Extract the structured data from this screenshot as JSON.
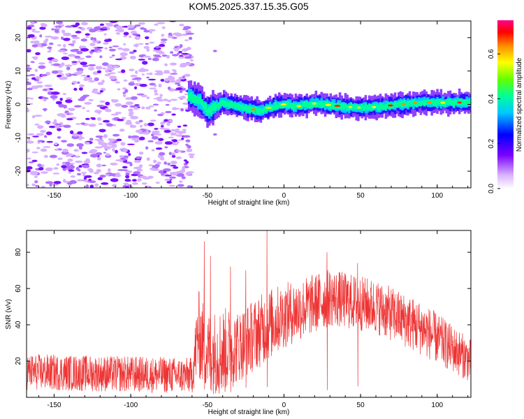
{
  "title": "KOM5.2025.337.15.35.G05",
  "chart_data": [
    {
      "type": "heatmap",
      "name": "spectrogram",
      "xlabel": "Height of straight line (km)",
      "ylabel": "Frequency (Hz)",
      "xlim": [
        -168,
        122
      ],
      "ylim": [
        -25,
        25
      ],
      "xticks": [
        -150,
        -100,
        -50,
        0,
        50,
        100
      ],
      "yticks": [
        -20,
        -10,
        0,
        10,
        20
      ],
      "noise_region_x": [
        -168,
        -60
      ],
      "signal_start_x": -62,
      "signal_track": [
        {
          "x": -62,
          "f": 2.5
        },
        {
          "x": -55,
          "f": 1.0
        },
        {
          "x": -50,
          "f": -2.0
        },
        {
          "x": -40,
          "f": 0.5
        },
        {
          "x": -30,
          "f": -0.5
        },
        {
          "x": -20,
          "f": -1.5
        },
        {
          "x": -15,
          "f": -2.0
        },
        {
          "x": -10,
          "f": -1.0
        },
        {
          "x": 0,
          "f": 0.0
        },
        {
          "x": 10,
          "f": -0.5
        },
        {
          "x": 20,
          "f": 0.3
        },
        {
          "x": 30,
          "f": -0.2
        },
        {
          "x": 40,
          "f": -0.7
        },
        {
          "x": 50,
          "f": -1.0
        },
        {
          "x": 60,
          "f": -0.8
        },
        {
          "x": 70,
          "f": -0.3
        },
        {
          "x": 80,
          "f": 0.2
        },
        {
          "x": 90,
          "f": 0.6
        },
        {
          "x": 100,
          "f": 0.5
        },
        {
          "x": 110,
          "f": 0.5
        },
        {
          "x": 122,
          "f": 0.6
        }
      ],
      "colorbar": {
        "label": "Normalized spectral amplitude",
        "range": [
          0,
          0.75
        ],
        "ticks": [
          0.0,
          0.2,
          0.4,
          0.6
        ],
        "tick_labels": [
          "0.0",
          "0.2",
          "0.4",
          "0.6"
        ]
      }
    },
    {
      "type": "line",
      "name": "snr",
      "xlabel": "Height of straight line (km)",
      "ylabel": "SNR (v/v)",
      "xlim": [
        -168,
        122
      ],
      "ylim": [
        0,
        92
      ],
      "xticks": [
        -150,
        -100,
        -50,
        0,
        50,
        100
      ],
      "yticks": [
        20,
        40,
        60,
        80
      ],
      "color": "#ee3333",
      "envelope": [
        {
          "x": -168,
          "mean": 14,
          "spread": 10
        },
        {
          "x": -60,
          "mean": 12,
          "spread": 10
        },
        {
          "x": -56,
          "mean": 35,
          "spread": 25
        },
        {
          "x": -50,
          "mean": 25,
          "spread": 22
        },
        {
          "x": -40,
          "mean": 25,
          "spread": 25
        },
        {
          "x": -30,
          "mean": 28,
          "spread": 20
        },
        {
          "x": -10,
          "mean": 40,
          "spread": 20
        },
        {
          "x": 0,
          "mean": 45,
          "spread": 18
        },
        {
          "x": 30,
          "mean": 55,
          "spread": 16
        },
        {
          "x": 60,
          "mean": 50,
          "spread": 15
        },
        {
          "x": 90,
          "mean": 38,
          "spread": 15
        },
        {
          "x": 122,
          "mean": 20,
          "spread": 12
        }
      ],
      "peaks": [
        {
          "x": -52,
          "y": 86
        },
        {
          "x": -48,
          "y": 78
        },
        {
          "x": -35,
          "y": 72
        },
        {
          "x": -25,
          "y": 70
        },
        {
          "x": -11,
          "y": 92
        },
        {
          "x": 28,
          "y": 80
        },
        {
          "x": 48,
          "y": 74
        }
      ]
    }
  ]
}
